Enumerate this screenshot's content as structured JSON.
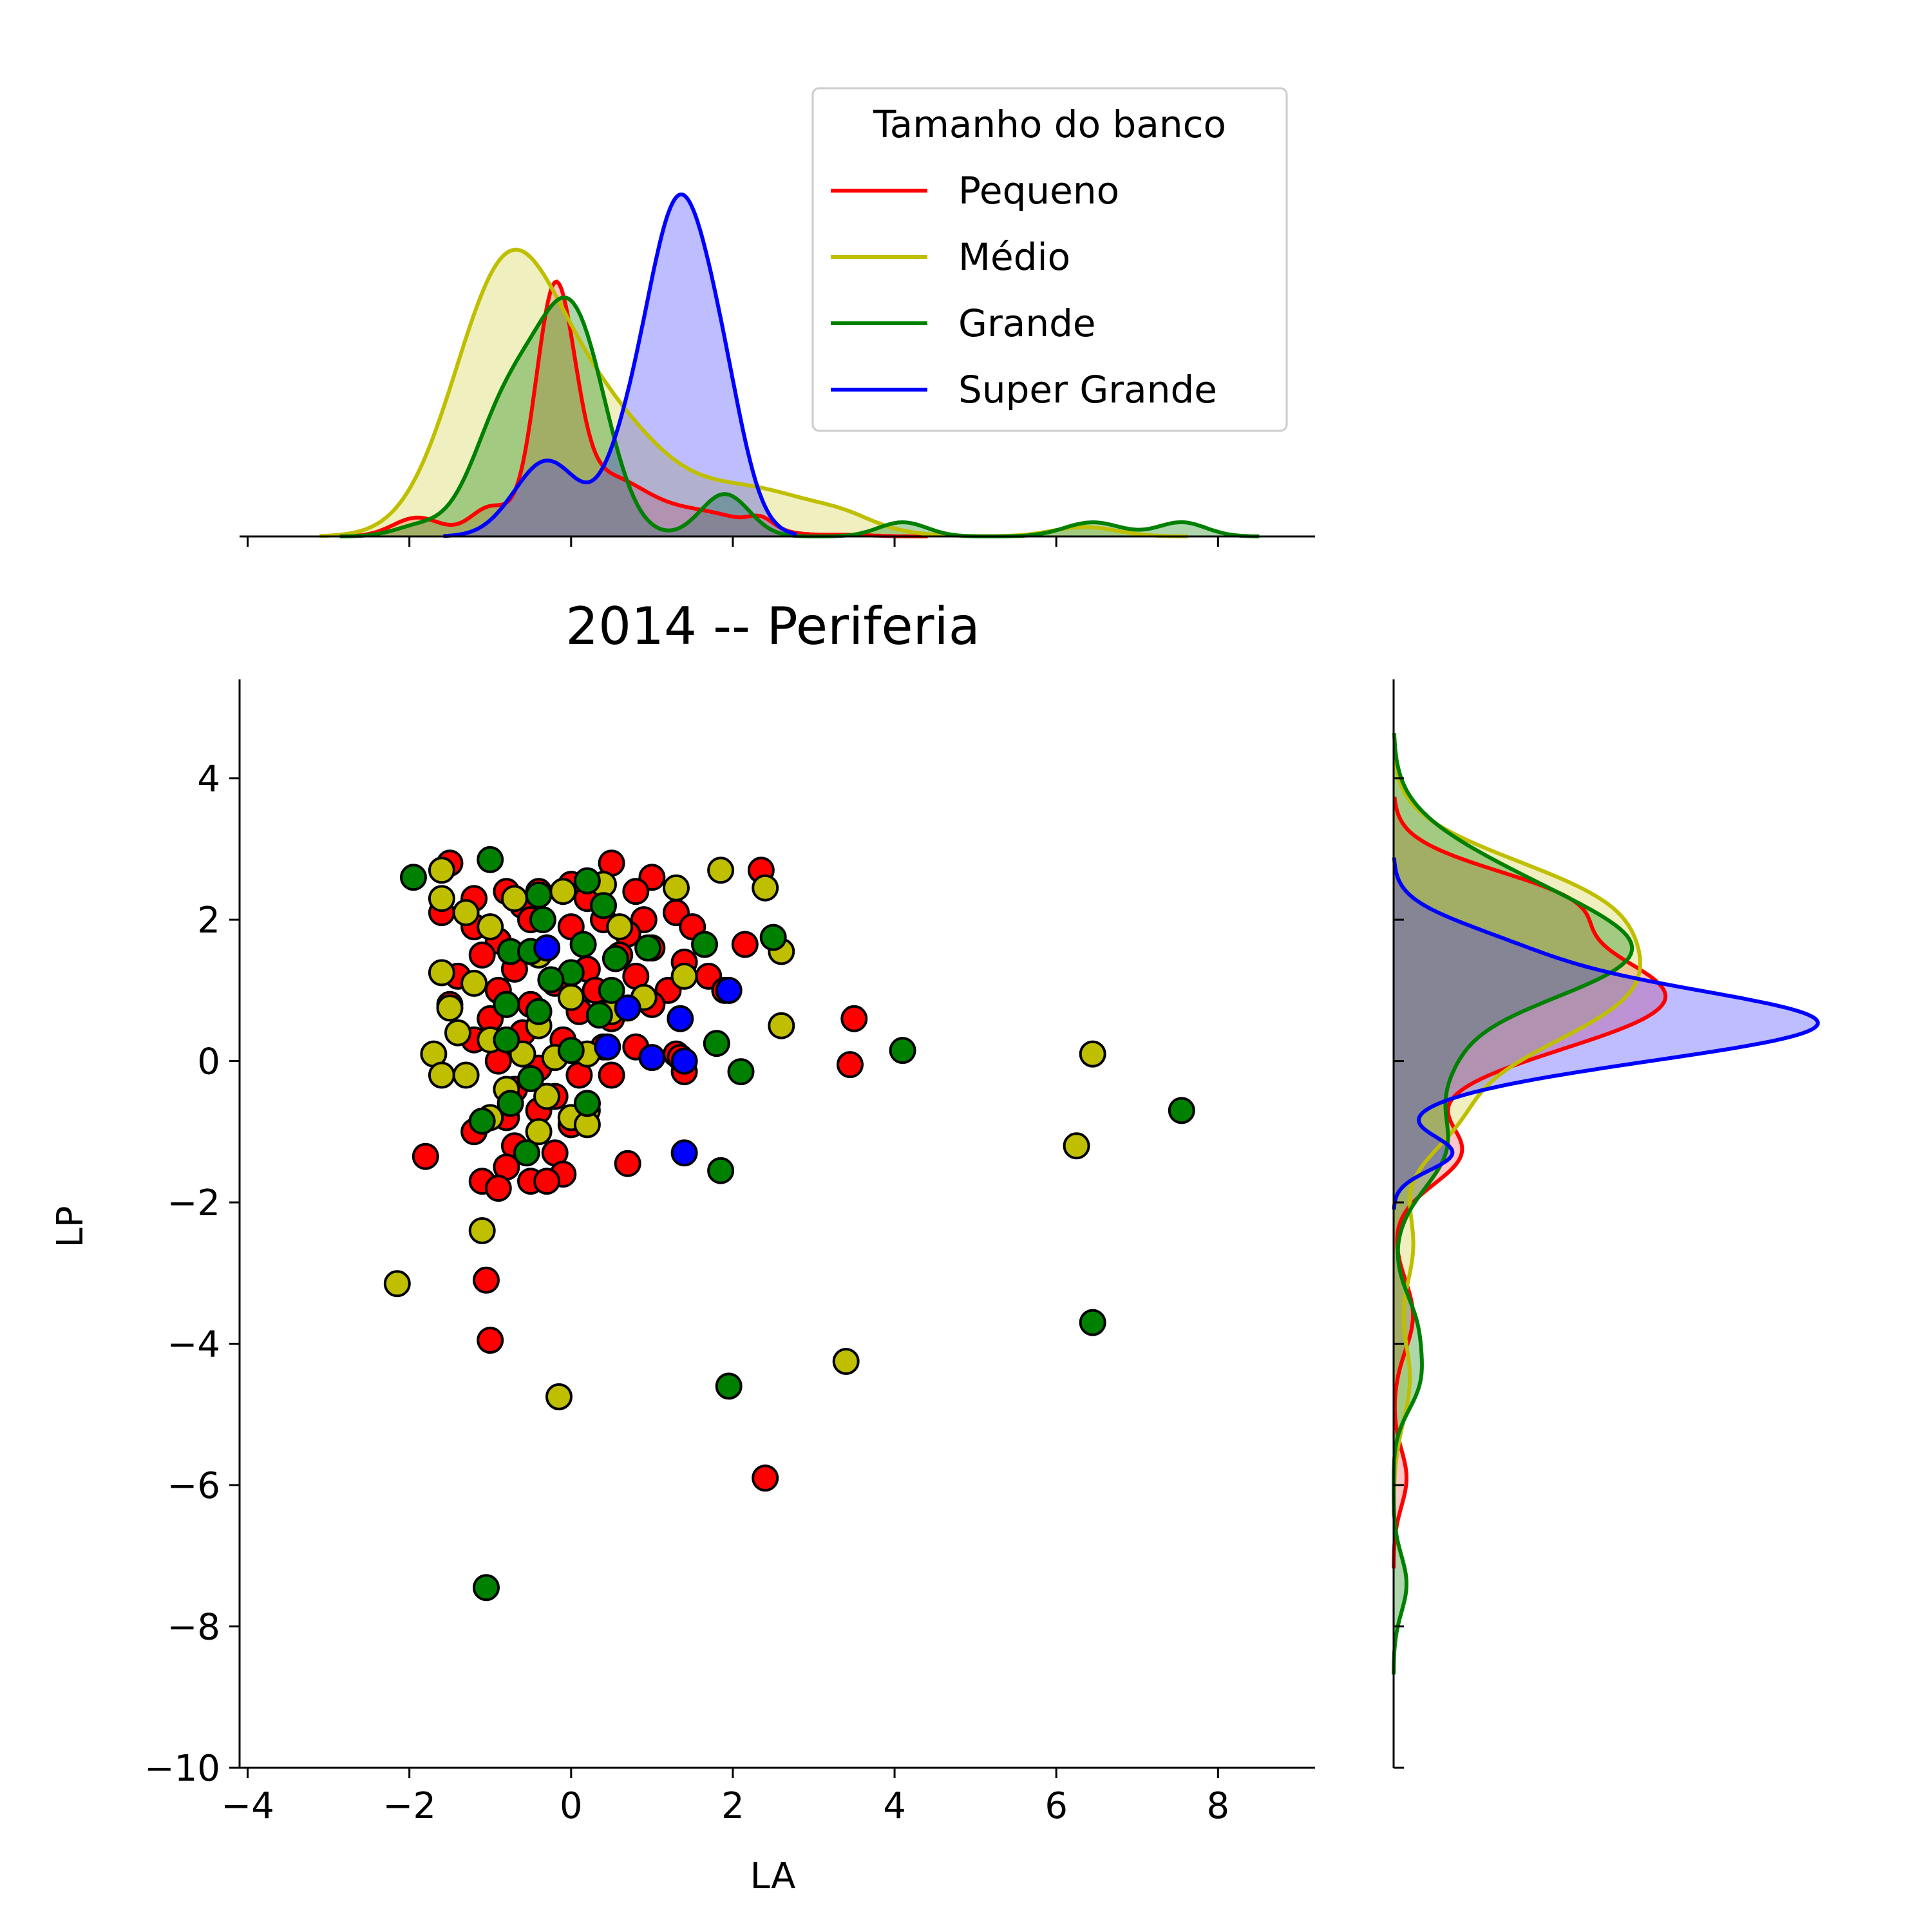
{
  "chart_data": {
    "type": "scatter",
    "title": "2014 -- Periferia",
    "xlabel": "LA",
    "ylabel": "LP",
    "xlim": [
      -4.1,
      9.2
    ],
    "ylim": [
      -10,
      5.4
    ],
    "xticks": [
      -4,
      -2,
      0,
      2,
      4,
      6,
      8
    ],
    "yticks": [
      -10,
      -8,
      -6,
      -4,
      -2,
      0,
      2,
      4
    ],
    "tick_labels": {
      "x": [
        "−4",
        "−2",
        "0",
        "2",
        "4",
        "6",
        "8"
      ],
      "y": [
        "−10",
        "−8",
        "−6",
        "−4",
        "−2",
        "0",
        "2",
        "4"
      ]
    },
    "legend": {
      "title": "Tamanho do banco",
      "position": "top-right of top marginal",
      "entries": [
        "Pequeno",
        "Médio",
        "Grande",
        "Super Grande"
      ]
    },
    "series": [
      {
        "name": "Pequeno",
        "color": "#ff0000",
        "fill_opacity": 0.22,
        "points": [
          [
            -1.5,
            2.8
          ],
          [
            -1.2,
            2.3
          ],
          [
            -0.8,
            2.4
          ],
          [
            -0.6,
            2.2
          ],
          [
            -0.4,
            2.4
          ],
          [
            0.0,
            2.5
          ],
          [
            0.5,
            2.8
          ],
          [
            1.0,
            2.6
          ],
          [
            0.8,
            2.4
          ],
          [
            0.2,
            2.3
          ],
          [
            -1.6,
            2.1
          ],
          [
            -1.2,
            1.9
          ],
          [
            -0.9,
            1.7
          ],
          [
            -0.5,
            2.0
          ],
          [
            0.0,
            1.9
          ],
          [
            0.4,
            2.0
          ],
          [
            0.9,
            2.0
          ],
          [
            1.3,
            2.1
          ],
          [
            1.5,
            1.9
          ],
          [
            0.7,
            1.8
          ],
          [
            -1.1,
            1.5
          ],
          [
            -0.7,
            1.3
          ],
          [
            -0.3,
            1.6
          ],
          [
            0.2,
            1.3
          ],
          [
            0.6,
            1.5
          ],
          [
            1.0,
            1.6
          ],
          [
            1.4,
            1.4
          ],
          [
            -1.4,
            1.2
          ],
          [
            -0.9,
            1.0
          ],
          [
            -0.2,
            1.1
          ],
          [
            0.3,
            1.0
          ],
          [
            0.8,
            1.2
          ],
          [
            1.2,
            1.0
          ],
          [
            1.7,
            1.2
          ],
          [
            1.9,
            1.0
          ],
          [
            -1.5,
            0.8
          ],
          [
            -1.0,
            0.6
          ],
          [
            -0.5,
            0.8
          ],
          [
            0.1,
            0.7
          ],
          [
            0.5,
            0.6
          ],
          [
            1.0,
            0.8
          ],
          [
            -1.2,
            0.3
          ],
          [
            -0.6,
            0.4
          ],
          [
            -0.1,
            0.3
          ],
          [
            0.4,
            0.2
          ],
          [
            0.8,
            0.2
          ],
          [
            1.3,
            0.1
          ],
          [
            -0.9,
            0.0
          ],
          [
            -0.4,
            -0.1
          ],
          [
            0.1,
            -0.2
          ],
          [
            0.5,
            -0.2
          ],
          [
            -0.7,
            -0.4
          ],
          [
            -0.2,
            -0.5
          ],
          [
            0.2,
            -0.6
          ],
          [
            -0.8,
            -0.8
          ],
          [
            -0.4,
            -0.7
          ],
          [
            0.0,
            -0.9
          ],
          [
            -1.2,
            -1.0
          ],
          [
            -0.7,
            -1.2
          ],
          [
            -0.2,
            -1.3
          ],
          [
            -0.8,
            -1.5
          ],
          [
            -0.5,
            -1.7
          ],
          [
            -0.1,
            -1.6
          ],
          [
            -1.1,
            -1.7
          ],
          [
            -0.9,
            -1.8
          ],
          [
            -0.3,
            -1.7
          ],
          [
            -1.8,
            -1.35
          ],
          [
            0.7,
            -1.45
          ],
          [
            3.5,
            0.6
          ],
          [
            3.45,
            -0.05
          ],
          [
            2.35,
            2.7
          ],
          [
            2.15,
            1.65
          ],
          [
            1.4,
            -0.15
          ],
          [
            1.35,
            0.05
          ],
          [
            -1.05,
            -3.1
          ],
          [
            -1.0,
            -3.95
          ],
          [
            2.4,
            -5.9
          ]
        ]
      },
      {
        "name": "Médio",
        "color": "#bfbf00",
        "fill_opacity": 0.25,
        "points": [
          [
            -1.6,
            2.7
          ],
          [
            -1.6,
            2.3
          ],
          [
            -1.3,
            2.1
          ],
          [
            -0.7,
            2.3
          ],
          [
            -0.1,
            2.4
          ],
          [
            0.4,
            2.5
          ],
          [
            1.3,
            2.45
          ],
          [
            1.85,
            2.7
          ],
          [
            2.4,
            2.45
          ],
          [
            -1.0,
            1.9
          ],
          [
            -0.4,
            1.5
          ],
          [
            0.6,
            1.9
          ],
          [
            1.4,
            1.2
          ],
          [
            2.6,
            1.55
          ],
          [
            -1.6,
            1.25
          ],
          [
            -1.2,
            1.1
          ],
          [
            -0.8,
            0.8
          ],
          [
            -0.4,
            0.5
          ],
          [
            0.0,
            0.9
          ],
          [
            0.5,
            0.7
          ],
          [
            0.9,
            0.9
          ],
          [
            -1.5,
            0.75
          ],
          [
            -1.4,
            0.4
          ],
          [
            -1.0,
            0.3
          ],
          [
            -0.6,
            0.1
          ],
          [
            -0.2,
            0.05
          ],
          [
            0.2,
            0.1
          ],
          [
            -1.7,
            0.1
          ],
          [
            -1.6,
            -0.2
          ],
          [
            -1.3,
            -0.2
          ],
          [
            -0.8,
            -0.4
          ],
          [
            -0.3,
            -0.5
          ],
          [
            0.2,
            -0.7
          ],
          [
            -1.0,
            -0.8
          ],
          [
            -0.4,
            -1.0
          ],
          [
            0.0,
            -0.8
          ],
          [
            0.2,
            -0.9
          ],
          [
            2.6,
            0.5
          ],
          [
            6.45,
            0.1
          ],
          [
            6.25,
            -1.2
          ],
          [
            -1.1,
            -2.4
          ],
          [
            -2.15,
            -3.15
          ],
          [
            -0.15,
            -4.75
          ],
          [
            3.4,
            -4.25
          ]
        ]
      },
      {
        "name": "Grande",
        "color": "#008000",
        "fill_opacity": 0.32,
        "points": [
          [
            -1.95,
            2.6
          ],
          [
            -1.0,
            2.85
          ],
          [
            -0.4,
            2.35
          ],
          [
            0.2,
            2.55
          ],
          [
            0.4,
            2.2
          ],
          [
            -0.35,
            2.0
          ],
          [
            0.15,
            1.65
          ],
          [
            0.55,
            1.45
          ],
          [
            0.95,
            1.6
          ],
          [
            1.65,
            1.65
          ],
          [
            2.5,
            1.75
          ],
          [
            -0.75,
            1.55
          ],
          [
            -0.5,
            1.55
          ],
          [
            0.0,
            1.25
          ],
          [
            -0.25,
            1.15
          ],
          [
            0.5,
            1.0
          ],
          [
            -0.8,
            0.8
          ],
          [
            -0.4,
            0.7
          ],
          [
            0.35,
            0.65
          ],
          [
            -0.8,
            0.3
          ],
          [
            0.0,
            0.15
          ],
          [
            -0.5,
            -0.25
          ],
          [
            0.2,
            -0.6
          ],
          [
            -0.75,
            -0.6
          ],
          [
            -1.1,
            -0.85
          ],
          [
            -0.55,
            -1.3
          ],
          [
            1.8,
            0.25
          ],
          [
            2.1,
            -0.15
          ],
          [
            1.85,
            -1.55
          ],
          [
            4.1,
            0.15
          ],
          [
            7.55,
            -0.7
          ],
          [
            6.45,
            -3.7
          ],
          [
            1.95,
            -4.6
          ],
          [
            -1.05,
            -7.45
          ]
        ]
      },
      {
        "name": "Super Grande",
        "color": "#0000ff",
        "fill_opacity": 0.26,
        "points": [
          [
            -0.3,
            1.6
          ],
          [
            1.95,
            1.0
          ],
          [
            0.7,
            0.75
          ],
          [
            1.35,
            0.6
          ],
          [
            0.45,
            0.2
          ],
          [
            1.0,
            0.05
          ],
          [
            1.4,
            0.0
          ],
          [
            1.4,
            -1.3
          ]
        ]
      }
    ],
    "marginal": {
      "type": "kde",
      "gray_overlap": "#858596",
      "top_density_max": 0.96,
      "right_density_max": 0.74,
      "top_curves": [
        {
          "name": "Pequeno",
          "components": [
            [
              0.48,
              -0.2,
              0.24
            ],
            [
              0.12,
              0.4,
              0.5
            ],
            [
              0.06,
              -1.0,
              0.25
            ],
            [
              0.04,
              -1.9,
              0.3
            ],
            [
              0.05,
              1.6,
              0.6
            ],
            [
              0.02,
              2.35,
              0.15
            ],
            [
              0.003,
              3.45,
              0.3
            ]
          ]
        },
        {
          "name": "Médio",
          "components": [
            [
              0.55,
              -0.8,
              0.65
            ],
            [
              0.22,
              0.4,
              0.7
            ],
            [
              0.1,
              2.2,
              0.9
            ],
            [
              0.015,
              3.4,
              0.35
            ],
            [
              0.02,
              6.35,
              0.4
            ],
            [
              0.0,
              -2.15,
              0.3
            ]
          ]
        },
        {
          "name": "Grande",
          "components": [
            [
              0.42,
              0.05,
              0.4
            ],
            [
              0.28,
              -0.7,
              0.45
            ],
            [
              0.09,
              1.9,
              0.3
            ],
            [
              0.03,
              4.1,
              0.3
            ],
            [
              0.03,
              6.45,
              0.35
            ],
            [
              0.03,
              7.55,
              0.3
            ],
            [
              0.02,
              -1.9,
              0.3
            ],
            [
              0.02,
              -1.0,
              0.3
            ]
          ]
        },
        {
          "name": "Super Grande",
          "components": [
            [
              0.72,
              1.35,
              0.45
            ],
            [
              0.16,
              -0.3,
              0.4
            ],
            [
              0.05,
              0.6,
              0.25
            ],
            [
              0.08,
              1.95,
              0.25
            ]
          ]
        }
      ],
      "right_curves": [
        {
          "name": "Pequeno",
          "components": [
            [
              0.42,
              0.9,
              0.75
            ],
            [
              0.2,
              2.3,
              0.45
            ],
            [
              0.1,
              -1.3,
              0.45
            ],
            [
              0.03,
              -3.6,
              0.5
            ],
            [
              0.02,
              -5.9,
              0.4
            ]
          ]
        },
        {
          "name": "Médio",
          "components": [
            [
              0.36,
              1.1,
              0.95
            ],
            [
              0.16,
              2.4,
              0.6
            ],
            [
              0.06,
              -0.9,
              0.5
            ],
            [
              0.03,
              -2.6,
              0.6
            ],
            [
              0.025,
              -4.5,
              0.6
            ]
          ]
        },
        {
          "name": "Grande",
          "components": [
            [
              0.3,
              1.4,
              0.65
            ],
            [
              0.16,
              2.4,
              0.7
            ],
            [
              0.06,
              0.0,
              0.5
            ],
            [
              0.08,
              -1.2,
              0.6
            ],
            [
              0.035,
              -3.8,
              0.5
            ],
            [
              0.03,
              -4.6,
              0.4
            ],
            [
              0.02,
              -7.4,
              0.4
            ]
          ]
        },
        {
          "name": "Super Grande",
          "components": [
            [
              0.64,
              0.55,
              0.5
            ],
            [
              0.14,
              1.6,
              0.4
            ],
            [
              0.09,
              -1.3,
              0.25
            ],
            [
              0.05,
              -0.1,
              0.4
            ]
          ]
        }
      ]
    }
  }
}
